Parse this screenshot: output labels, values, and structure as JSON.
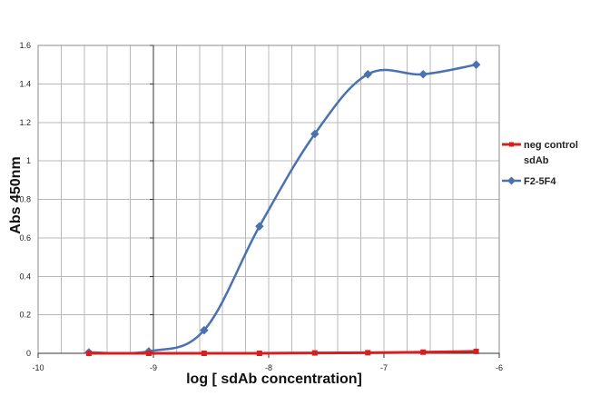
{
  "chart_data": {
    "type": "line",
    "xlabel": "log [ sdAb concentration]",
    "ylabel": "Abs 450nm",
    "xlim": [
      -10,
      -6
    ],
    "ylim": [
      0,
      1.6
    ],
    "x_ticks": [
      "-10",
      "-9",
      "-8",
      "-7",
      "-6"
    ],
    "y_ticks": [
      "0",
      "0.2",
      "0.4",
      "0.6",
      "0.8",
      "1",
      "1.2",
      "1.4",
      "1.6"
    ],
    "x_minor_step": 0.2,
    "grid": true,
    "legend_position": "right",
    "series": [
      {
        "name": "neg control sdAb",
        "legend_lines": [
          "neg control",
          "sdAb"
        ],
        "color": "#d62020",
        "marker": "square",
        "x": [
          -9.56,
          -9.04,
          -8.56,
          -8.08,
          -7.6,
          -7.14,
          -6.66,
          -6.2
        ],
        "y": [
          0,
          0,
          0,
          0,
          0.002,
          0.003,
          0.006,
          0.01
        ]
      },
      {
        "name": "F2-5F4",
        "legend_lines": [
          "F2-5F4"
        ],
        "color": "#4a72b0",
        "marker": "diamond",
        "x": [
          -9.56,
          -9.04,
          -8.56,
          -8.08,
          -7.6,
          -7.14,
          -6.66,
          -6.2
        ],
        "y": [
          0.005,
          0.01,
          0.12,
          0.66,
          1.14,
          1.45,
          1.45,
          1.5
        ]
      }
    ]
  }
}
